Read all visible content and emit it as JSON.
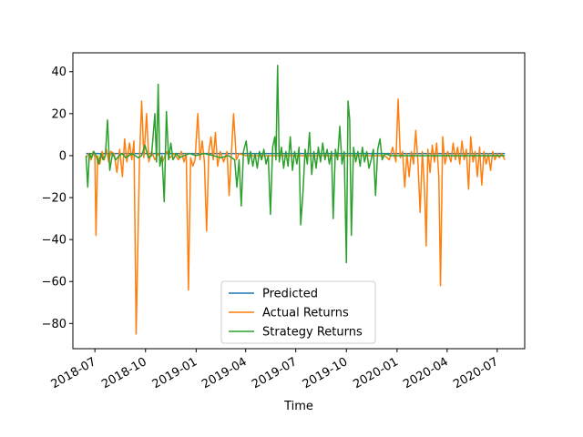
{
  "chart_data": {
    "type": "line",
    "title": "",
    "xlabel": "Time",
    "ylabel": "",
    "x_range": [
      "2018-05-22",
      "2020-08-20"
    ],
    "ylim": [
      -92,
      49
    ],
    "x_ticks": [
      {
        "date": "2018-07-01",
        "label": "2018-07"
      },
      {
        "date": "2018-10-01",
        "label": "2018-10"
      },
      {
        "date": "2019-01-01",
        "label": "2019-01"
      },
      {
        "date": "2019-04-01",
        "label": "2019-04"
      },
      {
        "date": "2019-07-01",
        "label": "2019-07"
      },
      {
        "date": "2019-10-01",
        "label": "2019-10"
      },
      {
        "date": "2020-01-01",
        "label": "2020-01"
      },
      {
        "date": "2020-04-01",
        "label": "2020-04"
      },
      {
        "date": "2020-07-01",
        "label": "2020-07"
      }
    ],
    "y_ticks": [
      40,
      20,
      0,
      -20,
      -40,
      -60,
      -80
    ],
    "y_tick_labels": [
      "40",
      "20",
      "0",
      "−20",
      "−40",
      "−60",
      "−80"
    ],
    "legend_position": "bottom-center",
    "grid": false,
    "series": [
      {
        "name": "Predicted",
        "color": "#1f77b4",
        "points": [
          [
            "2018-06-15",
            1.0
          ],
          [
            "2020-07-15",
            1.0
          ]
        ]
      },
      {
        "name": "Actual Returns",
        "color": "#ff7f0e",
        "points": [
          [
            "2018-06-15",
            -1
          ],
          [
            "2018-06-20",
            1
          ],
          [
            "2018-06-24",
            -2
          ],
          [
            "2018-06-28",
            2
          ],
          [
            "2018-07-01",
            -1
          ],
          [
            "2018-07-03",
            -38
          ],
          [
            "2018-07-06",
            0
          ],
          [
            "2018-07-10",
            -4
          ],
          [
            "2018-07-14",
            2
          ],
          [
            "2018-07-18",
            -2
          ],
          [
            "2018-07-22",
            3
          ],
          [
            "2018-07-26",
            -3
          ],
          [
            "2018-07-30",
            2
          ],
          [
            "2018-08-05",
            1
          ],
          [
            "2018-08-10",
            -8
          ],
          [
            "2018-08-15",
            3
          ],
          [
            "2018-08-20",
            -10
          ],
          [
            "2018-08-24",
            8
          ],
          [
            "2018-08-28",
            -3
          ],
          [
            "2018-09-02",
            6
          ],
          [
            "2018-09-06",
            -2
          ],
          [
            "2018-09-10",
            7
          ],
          [
            "2018-09-14",
            -85
          ],
          [
            "2018-09-20",
            -2
          ],
          [
            "2018-09-24",
            26
          ],
          [
            "2018-09-28",
            -1
          ],
          [
            "2018-10-03",
            20
          ],
          [
            "2018-10-07",
            -3
          ],
          [
            "2018-10-12",
            2
          ],
          [
            "2018-10-18",
            -2
          ],
          [
            "2018-10-24",
            1
          ],
          [
            "2018-11-01",
            -3
          ],
          [
            "2018-11-08",
            2
          ],
          [
            "2018-11-15",
            -1
          ],
          [
            "2018-11-22",
            1
          ],
          [
            "2018-11-30",
            -2
          ],
          [
            "2018-12-05",
            2
          ],
          [
            "2018-12-10",
            -3
          ],
          [
            "2018-12-14",
            1
          ],
          [
            "2018-12-18",
            -64
          ],
          [
            "2018-12-22",
            -1
          ],
          [
            "2018-12-26",
            -5
          ],
          [
            "2018-12-30",
            -2
          ],
          [
            "2019-01-04",
            20
          ],
          [
            "2019-01-08",
            -2
          ],
          [
            "2019-01-12",
            7
          ],
          [
            "2019-01-16",
            -3
          ],
          [
            "2019-01-20",
            -36
          ],
          [
            "2019-01-24",
            2
          ],
          [
            "2019-01-28",
            9
          ],
          [
            "2019-02-01",
            -2
          ],
          [
            "2019-02-05",
            11
          ],
          [
            "2019-02-09",
            -5
          ],
          [
            "2019-02-14",
            2
          ],
          [
            "2019-02-20",
            -3
          ],
          [
            "2019-02-26",
            2
          ],
          [
            "2019-03-02",
            -19
          ],
          [
            "2019-03-06",
            1
          ],
          [
            "2019-03-10",
            20
          ],
          [
            "2019-03-15",
            -2
          ],
          [
            "2019-03-20",
            1
          ],
          [
            "2019-04-01",
            0
          ],
          [
            "2019-05-01",
            0
          ],
          [
            "2019-06-01",
            0
          ],
          [
            "2019-07-01",
            0
          ],
          [
            "2019-08-01",
            0
          ],
          [
            "2019-09-01",
            0
          ],
          [
            "2019-10-01",
            0
          ],
          [
            "2019-11-01",
            0
          ],
          [
            "2019-12-10",
            0
          ],
          [
            "2019-12-18",
            -2
          ],
          [
            "2019-12-24",
            4
          ],
          [
            "2019-12-30",
            -3
          ],
          [
            "2020-01-03",
            27
          ],
          [
            "2020-01-07",
            -1
          ],
          [
            "2020-01-11",
            2
          ],
          [
            "2020-01-15",
            -15
          ],
          [
            "2020-01-19",
            1
          ],
          [
            "2020-01-23",
            -10
          ],
          [
            "2020-01-27",
            2
          ],
          [
            "2020-01-31",
            -4
          ],
          [
            "2020-02-04",
            12
          ],
          [
            "2020-02-08",
            -3
          ],
          [
            "2020-02-12",
            -27
          ],
          [
            "2020-02-16",
            2
          ],
          [
            "2020-02-20",
            -16
          ],
          [
            "2020-02-23",
            -43
          ],
          [
            "2020-02-26",
            3
          ],
          [
            "2020-03-01",
            -8
          ],
          [
            "2020-03-05",
            5
          ],
          [
            "2020-03-09",
            -3
          ],
          [
            "2020-03-13",
            6
          ],
          [
            "2020-03-17",
            -10
          ],
          [
            "2020-03-20",
            -62
          ],
          [
            "2020-03-24",
            9
          ],
          [
            "2020-03-28",
            -4
          ],
          [
            "2020-04-02",
            2
          ],
          [
            "2020-04-08",
            -3
          ],
          [
            "2020-04-12",
            6
          ],
          [
            "2020-04-16",
            -2
          ],
          [
            "2020-04-20",
            4
          ],
          [
            "2020-04-24",
            -4
          ],
          [
            "2020-04-28",
            7
          ],
          [
            "2020-05-02",
            -2
          ],
          [
            "2020-05-06",
            3
          ],
          [
            "2020-05-10",
            -16
          ],
          [
            "2020-05-14",
            9
          ],
          [
            "2020-05-18",
            -3
          ],
          [
            "2020-05-22",
            2
          ],
          [
            "2020-05-26",
            -10
          ],
          [
            "2020-05-30",
            4
          ],
          [
            "2020-06-03",
            -14
          ],
          [
            "2020-06-07",
            2
          ],
          [
            "2020-06-11",
            -4
          ],
          [
            "2020-06-15",
            1
          ],
          [
            "2020-06-19",
            -7
          ],
          [
            "2020-06-23",
            2
          ],
          [
            "2020-06-27",
            -2
          ],
          [
            "2020-07-01",
            1
          ],
          [
            "2020-07-05",
            -1
          ],
          [
            "2020-07-09",
            1
          ],
          [
            "2020-07-15",
            -2
          ]
        ]
      },
      {
        "name": "Strategy Returns",
        "color": "#2ca02c",
        "points": [
          [
            "2018-06-15",
            0
          ],
          [
            "2018-06-18",
            -15
          ],
          [
            "2018-06-21",
            1
          ],
          [
            "2018-06-25",
            -1
          ],
          [
            "2018-06-29",
            2
          ],
          [
            "2018-07-03",
            0
          ],
          [
            "2018-07-08",
            -4
          ],
          [
            "2018-07-12",
            1
          ],
          [
            "2018-07-16",
            -2
          ],
          [
            "2018-07-20",
            0
          ],
          [
            "2018-07-24",
            17
          ],
          [
            "2018-07-28",
            -7
          ],
          [
            "2018-08-02",
            1
          ],
          [
            "2018-08-08",
            -2
          ],
          [
            "2018-08-14",
            0
          ],
          [
            "2018-08-20",
            1
          ],
          [
            "2018-08-26",
            -1
          ],
          [
            "2018-09-01",
            0
          ],
          [
            "2018-09-06",
            1
          ],
          [
            "2018-09-12",
            0
          ],
          [
            "2018-09-18",
            -1
          ],
          [
            "2018-09-24",
            0
          ],
          [
            "2018-09-30",
            5
          ],
          [
            "2018-10-06",
            -1
          ],
          [
            "2018-10-12",
            0
          ],
          [
            "2018-10-18",
            20
          ],
          [
            "2018-10-21",
            -3
          ],
          [
            "2018-10-24",
            34
          ],
          [
            "2018-10-27",
            -5
          ],
          [
            "2018-10-31",
            0
          ],
          [
            "2018-11-04",
            -22
          ],
          [
            "2018-11-08",
            21
          ],
          [
            "2018-11-12",
            -2
          ],
          [
            "2018-11-16",
            6
          ],
          [
            "2018-11-20",
            -2
          ],
          [
            "2018-11-26",
            1
          ],
          [
            "2018-12-02",
            -1
          ],
          [
            "2018-12-10",
            0
          ],
          [
            "2018-12-20",
            1
          ],
          [
            "2019-01-01",
            0
          ],
          [
            "2019-01-15",
            1
          ],
          [
            "2019-02-01",
            0
          ],
          [
            "2019-02-15",
            -1
          ],
          [
            "2019-03-01",
            0
          ],
          [
            "2019-03-12",
            -2
          ],
          [
            "2019-03-16",
            -15
          ],
          [
            "2019-03-20",
            -2
          ],
          [
            "2019-03-24",
            -24
          ],
          [
            "2019-03-28",
            2
          ],
          [
            "2019-04-02",
            7
          ],
          [
            "2019-04-06",
            -4
          ],
          [
            "2019-04-10",
            2
          ],
          [
            "2019-04-14",
            -5
          ],
          [
            "2019-04-18",
            1
          ],
          [
            "2019-04-22",
            -6
          ],
          [
            "2019-04-26",
            2
          ],
          [
            "2019-04-30",
            -2
          ],
          [
            "2019-05-04",
            3
          ],
          [
            "2019-05-08",
            -4
          ],
          [
            "2019-05-12",
            0
          ],
          [
            "2019-05-16",
            -28
          ],
          [
            "2019-05-20",
            4
          ],
          [
            "2019-05-24",
            9
          ],
          [
            "2019-05-26",
            -2
          ],
          [
            "2019-05-29",
            43
          ],
          [
            "2019-06-01",
            -3
          ],
          [
            "2019-06-05",
            4
          ],
          [
            "2019-06-09",
            -6
          ],
          [
            "2019-06-13",
            2
          ],
          [
            "2019-06-17",
            -5
          ],
          [
            "2019-06-21",
            9
          ],
          [
            "2019-06-25",
            -7
          ],
          [
            "2019-06-29",
            2
          ],
          [
            "2019-07-03",
            -4
          ],
          [
            "2019-07-07",
            4
          ],
          [
            "2019-07-10",
            -33
          ],
          [
            "2019-07-14",
            -18
          ],
          [
            "2019-07-18",
            3
          ],
          [
            "2019-07-22",
            -4
          ],
          [
            "2019-07-26",
            11
          ],
          [
            "2019-07-30",
            -9
          ],
          [
            "2019-08-03",
            2
          ],
          [
            "2019-08-07",
            -6
          ],
          [
            "2019-08-11",
            4
          ],
          [
            "2019-08-15",
            -3
          ],
          [
            "2019-08-19",
            6
          ],
          [
            "2019-08-23",
            -2
          ],
          [
            "2019-08-27",
            3
          ],
          [
            "2019-08-31",
            -4
          ],
          [
            "2019-09-04",
            2
          ],
          [
            "2019-09-07",
            -30
          ],
          [
            "2019-09-11",
            3
          ],
          [
            "2019-09-15",
            -2
          ],
          [
            "2019-09-19",
            14
          ],
          [
            "2019-09-23",
            -4
          ],
          [
            "2019-09-27",
            2
          ],
          [
            "2019-10-01",
            -51
          ],
          [
            "2019-10-04",
            26
          ],
          [
            "2019-10-07",
            17
          ],
          [
            "2019-10-10",
            -38
          ],
          [
            "2019-10-14",
            4
          ],
          [
            "2019-10-18",
            -3
          ],
          [
            "2019-10-22",
            2
          ],
          [
            "2019-10-26",
            -5
          ],
          [
            "2019-10-30",
            4
          ],
          [
            "2019-11-03",
            -3
          ],
          [
            "2019-11-07",
            2
          ],
          [
            "2019-11-11",
            -6
          ],
          [
            "2019-11-15",
            -2
          ],
          [
            "2019-11-19",
            3
          ],
          [
            "2019-11-23",
            -19
          ],
          [
            "2019-11-27",
            3
          ],
          [
            "2019-12-01",
            8
          ],
          [
            "2019-12-05",
            -2
          ],
          [
            "2019-12-10",
            1
          ],
          [
            "2019-12-20",
            0
          ],
          [
            "2020-01-15",
            0
          ],
          [
            "2020-02-15",
            0
          ],
          [
            "2020-03-15",
            0
          ],
          [
            "2020-04-15",
            0
          ],
          [
            "2020-05-15",
            0
          ],
          [
            "2020-06-15",
            0
          ],
          [
            "2020-07-15",
            0
          ]
        ]
      }
    ]
  }
}
